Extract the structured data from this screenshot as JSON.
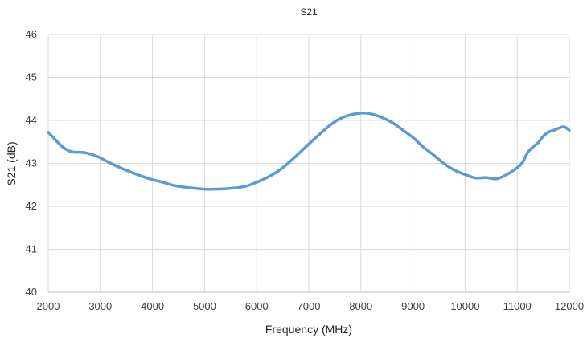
{
  "chart_data": {
    "type": "line",
    "title": "S21",
    "xlabel": "Frequency (MHz)",
    "ylabel": "S21 (dB)",
    "xlim": [
      2000,
      12000
    ],
    "ylim": [
      40,
      46
    ],
    "x_ticks": [
      "2000",
      "3000",
      "4000",
      "5000",
      "6000",
      "7000",
      "8000",
      "9000",
      "10000",
      "11000",
      "12000"
    ],
    "y_ticks": [
      "40",
      "41",
      "42",
      "43",
      "44",
      "45",
      "46"
    ],
    "grid": true,
    "legend": "none",
    "colors": {
      "line": "#5b9bd5",
      "grid": "#d9d9d9",
      "axis": "#bfbfbf"
    },
    "series": [
      {
        "x": [
          2000,
          2100,
          2200,
          2300,
          2400,
          2500,
          2600,
          2700,
          2800,
          2900,
          3000,
          3200,
          3400,
          3600,
          3800,
          4000,
          4200,
          4400,
          4600,
          4800,
          5000,
          5200,
          5400,
          5600,
          5800,
          6000,
          6200,
          6400,
          6600,
          6800,
          7000,
          7200,
          7400,
          7600,
          7800,
          8000,
          8100,
          8200,
          8400,
          8600,
          8800,
          9000,
          9200,
          9400,
          9600,
          9800,
          10000,
          10200,
          10400,
          10600,
          10800,
          11000,
          11100,
          11200,
          11300,
          11400,
          11500,
          11600,
          11700,
          11800,
          11900,
          12000
        ],
        "y": [
          43.72,
          43.6,
          43.47,
          43.36,
          43.29,
          43.26,
          43.26,
          43.25,
          43.22,
          43.18,
          43.13,
          43.0,
          42.89,
          42.79,
          42.7,
          42.62,
          42.56,
          42.49,
          42.45,
          42.42,
          42.4,
          42.4,
          42.41,
          42.43,
          42.47,
          42.56,
          42.67,
          42.81,
          43.0,
          43.22,
          43.45,
          43.67,
          43.88,
          44.04,
          44.13,
          44.17,
          44.17,
          44.15,
          44.07,
          43.95,
          43.78,
          43.6,
          43.38,
          43.19,
          42.99,
          42.84,
          42.74,
          42.66,
          42.67,
          42.64,
          42.74,
          42.9,
          43.02,
          43.25,
          43.38,
          43.48,
          43.63,
          43.73,
          43.77,
          43.82,
          43.85,
          43.77
        ]
      }
    ]
  }
}
